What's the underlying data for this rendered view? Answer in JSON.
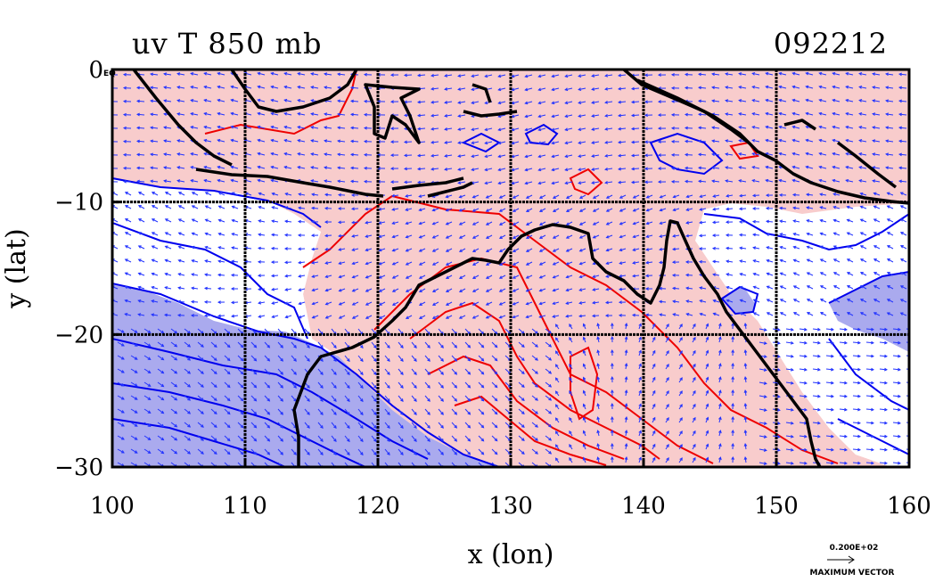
{
  "chart_data": {
    "type": "heatmap",
    "title": "uv T 850 mb",
    "date_label": "092212",
    "xlabel": "x (lon)",
    "ylabel": "y (lat)",
    "xlim": [
      100,
      160
    ],
    "ylim": [
      -30,
      0
    ],
    "x_ticks": [
      100,
      110,
      120,
      130,
      140,
      150,
      160
    ],
    "y_ticks": [
      0,
      -10,
      -20,
      -30
    ],
    "x_tick_labels": [
      "100",
      "110",
      "120",
      "130",
      "140",
      "150",
      "160"
    ],
    "y_tick_labels": [
      "0",
      "−10",
      "−20",
      "−30"
    ],
    "y0_suffix": "EQ",
    "grid": true,
    "colors": {
      "warm_fill": "#f8cccc",
      "cold_fill": "#aaaaee",
      "warm_contour": "#ee0000",
      "cold_contour": "#0000ee",
      "vector": "#2233ff",
      "coast": "#000000"
    },
    "reference_vector": {
      "value_label": "0.200E+02",
      "caption": "MAXIMUM VECTOR"
    }
  }
}
